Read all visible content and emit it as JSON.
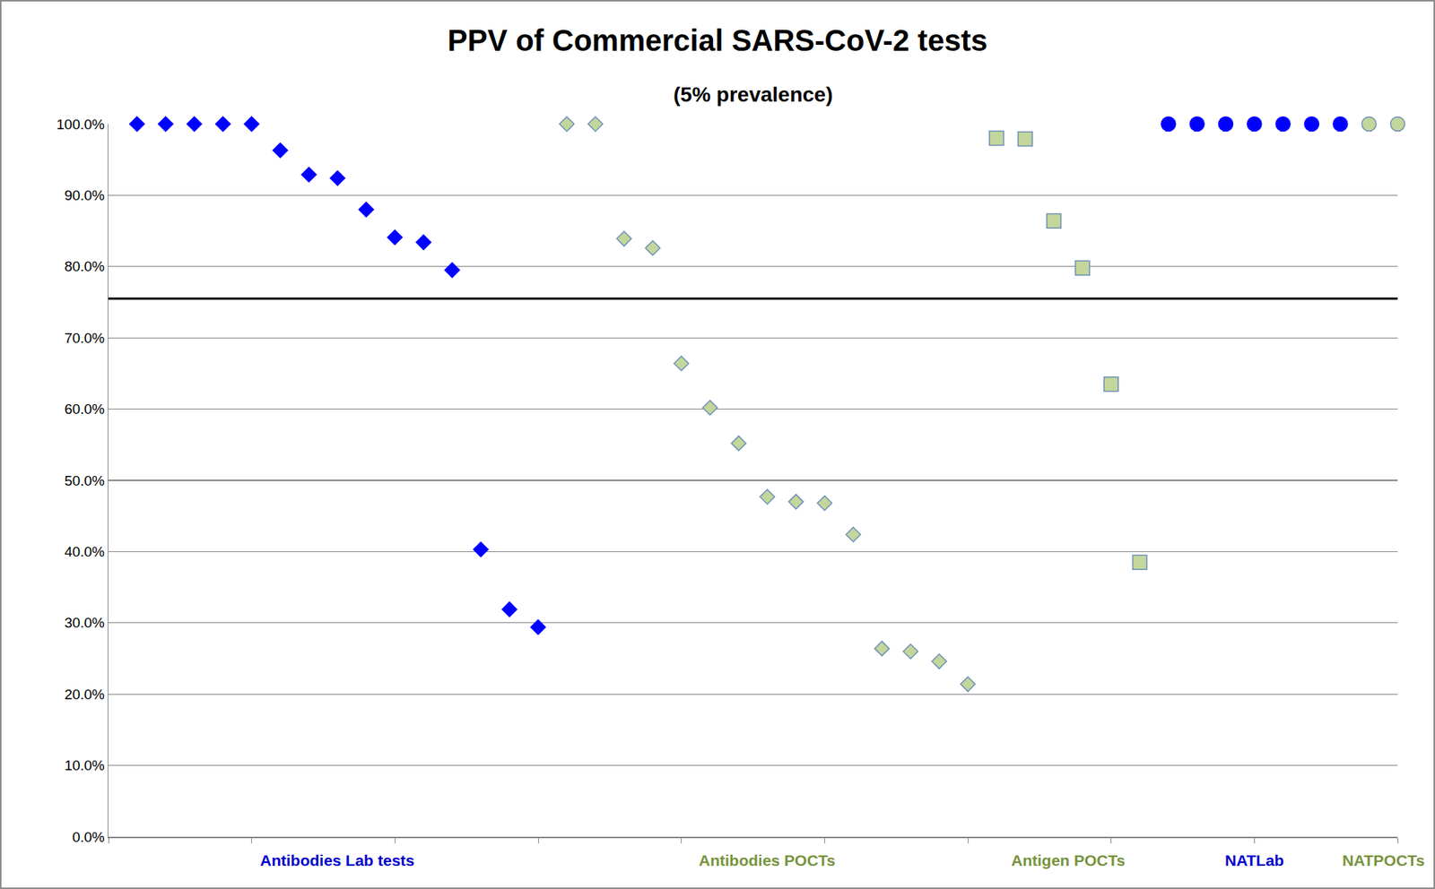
{
  "chart_data": {
    "type": "scatter",
    "title": "PPV of Commercial SARS-CoV-2 tests",
    "subtitle": "(5% prevalence)",
    "xlim": [
      0,
      45
    ],
    "xticks": [
      0,
      5,
      10,
      15,
      20,
      25,
      30,
      35,
      40,
      45
    ],
    "ylim": [
      0,
      100
    ],
    "yticks": [
      {
        "value": 0,
        "label": "0.0%"
      },
      {
        "value": 10,
        "label": "10.0%"
      },
      {
        "value": 20,
        "label": "20.0%"
      },
      {
        "value": 30,
        "label": "30.0%"
      },
      {
        "value": 40,
        "label": "40.0%"
      },
      {
        "value": 50,
        "label": "50.0%"
      },
      {
        "value": 60,
        "label": "60.0%"
      },
      {
        "value": 70,
        "label": "70.0%"
      },
      {
        "value": 80,
        "label": "80.0%"
      },
      {
        "value": 90,
        "label": "90.0%"
      },
      {
        "value": 100,
        "label": "100.0%"
      }
    ],
    "grid": true,
    "tick_labels": "y",
    "reference_line": {
      "value": 75.5,
      "color": "#000000"
    },
    "series": [
      {
        "name": "Antibodies Lab tests",
        "color": "#0000FF",
        "marker": "diamond",
        "x": [
          1,
          2,
          3,
          4,
          5,
          6,
          7,
          8,
          9,
          10,
          11,
          12,
          13,
          14,
          15
        ],
        "values": [
          100,
          100,
          100,
          100,
          100,
          96.3,
          92.9,
          92.4,
          88.0,
          84.1,
          83.4,
          79.5,
          40.3,
          31.9,
          29.4
        ]
      },
      {
        "name": "Antibodies POCTs",
        "color": "#C3D69B",
        "marker": "diamond",
        "x": [
          16,
          17,
          18,
          19,
          20,
          21,
          22,
          23,
          24,
          25,
          26,
          27,
          28,
          29,
          30
        ],
        "values": [
          100,
          100,
          83.9,
          82.6,
          66.4,
          60.2,
          55.2,
          47.7,
          47.0,
          46.8,
          42.4,
          26.4,
          26.0,
          24.6,
          21.4
        ]
      },
      {
        "name": "Antigen POCTs",
        "color": "#C3D69B",
        "marker": "square",
        "x": [
          31,
          32,
          33,
          34,
          35,
          36
        ],
        "values": [
          98.0,
          97.9,
          86.4,
          79.8,
          63.5,
          38.5
        ]
      },
      {
        "name": "NATLab",
        "color": "#0000FF",
        "marker": "circle",
        "x": [
          37,
          38,
          39,
          40,
          41,
          42,
          43
        ],
        "values": [
          100,
          100,
          100,
          100,
          100,
          100,
          100
        ]
      },
      {
        "name": "NATPOCTs",
        "color": "#C3D69B",
        "marker": "circle",
        "x": [
          44,
          45
        ],
        "values": [
          100,
          100
        ]
      }
    ]
  }
}
